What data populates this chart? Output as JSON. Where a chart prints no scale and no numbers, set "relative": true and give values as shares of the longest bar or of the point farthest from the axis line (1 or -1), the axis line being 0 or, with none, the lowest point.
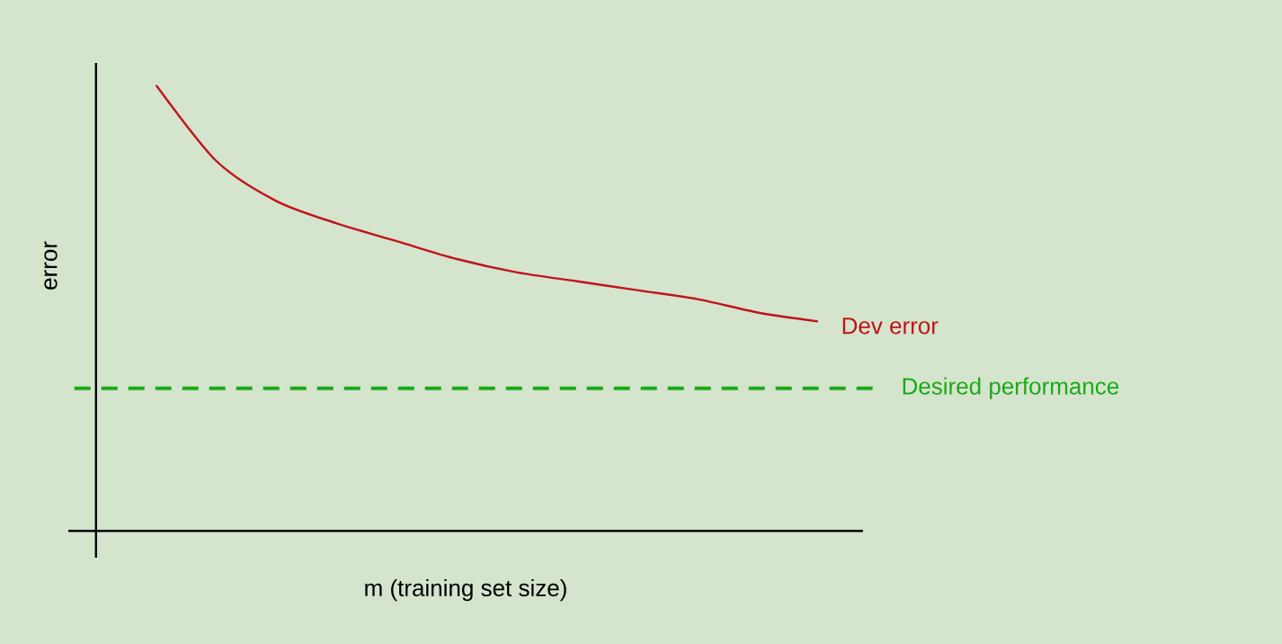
{
  "chart_data": {
    "type": "line",
    "xlabel": "m (training set size)",
    "ylabel": "error",
    "relative": true,
    "categories": [
      null,
      null,
      null,
      null,
      null,
      null,
      null,
      null,
      null,
      null,
      null,
      null
    ],
    "series": [
      {
        "name": "Dev error",
        "color": "#c0141c",
        "values": [
          1,
          0.83,
          0.74,
          0.69,
          0.65,
          0.61,
          0.58,
          0.56,
          0.54,
          0.52,
          0.49,
          0.47
        ]
      }
    ],
    "ref_lines": [
      {
        "axis": "y",
        "value": 0.32,
        "label": "Desired performance",
        "color": "#1aaa1a",
        "line_style": "dashed"
      }
    ]
  }
}
